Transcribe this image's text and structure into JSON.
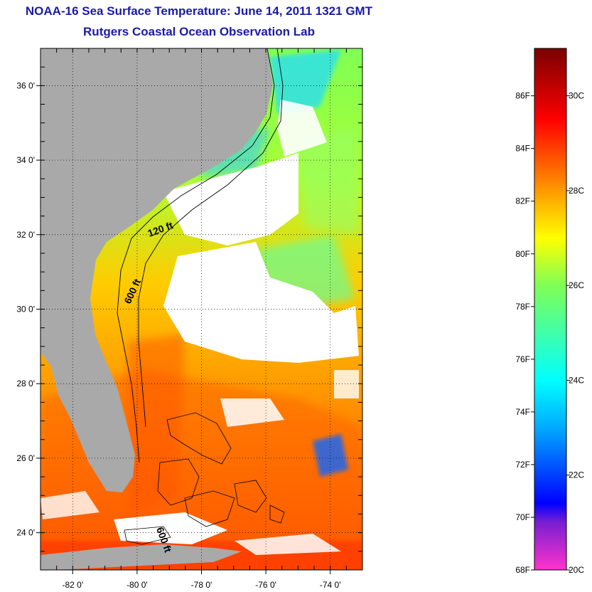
{
  "header": {
    "title": "NOAA-16 Sea Surface Temperature:  June 14, 2011 1321 GMT",
    "subtitle": "Rutgers Coastal Ocean Observation Lab"
  },
  "map": {
    "lon_range": [
      -83,
      -73
    ],
    "lat_range": [
      23,
      37
    ],
    "lat_ticks": [
      {
        "value": 24,
        "label": "24 0'"
      },
      {
        "value": 26,
        "label": "26 0'"
      },
      {
        "value": 28,
        "label": "28 0'"
      },
      {
        "value": 30,
        "label": "30 0'"
      },
      {
        "value": 32,
        "label": "32 0'"
      },
      {
        "value": 34,
        "label": "34 0'"
      },
      {
        "value": 36,
        "label": "36 0'"
      }
    ],
    "lon_ticks": [
      {
        "value": -82,
        "label": "-82 0'"
      },
      {
        "value": -80,
        "label": "-80 0'"
      },
      {
        "value": -78,
        "label": "-78 0'"
      },
      {
        "value": -76,
        "label": "-76 0'"
      },
      {
        "value": -74,
        "label": "-74 0'"
      }
    ],
    "grid": true,
    "contour_labels": [
      "120 ft",
      "600 ft",
      "600 ft"
    ],
    "colors": {
      "land": "#a9a9a9",
      "cloud": "#ffffff"
    }
  },
  "colorbar": {
    "range_c": [
      20,
      31
    ],
    "fahrenheit_labels": [
      "86F",
      "84F",
      "82F",
      "80F",
      "78F",
      "76F",
      "74F",
      "72F",
      "70F",
      "68F"
    ],
    "celsius_labels": [
      "30C",
      "28C",
      "26C",
      "24C",
      "22C",
      "20C"
    ],
    "stops": [
      {
        "c": 20,
        "color": "#ff33cc"
      },
      {
        "c": 21,
        "color": "#7a1fd1"
      },
      {
        "c": 21.4,
        "color": "#0000ff"
      },
      {
        "c": 23,
        "color": "#00aaff"
      },
      {
        "c": 24,
        "color": "#00ffff"
      },
      {
        "c": 26,
        "color": "#7fff55"
      },
      {
        "c": 27,
        "color": "#ffff00"
      },
      {
        "c": 28,
        "color": "#ff9900"
      },
      {
        "c": 29.5,
        "color": "#ff0000"
      },
      {
        "c": 31,
        "color": "#7a0000"
      }
    ]
  }
}
